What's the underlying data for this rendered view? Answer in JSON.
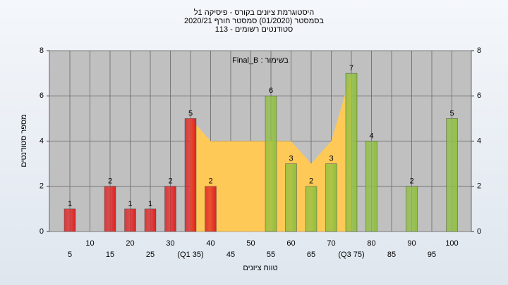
{
  "chart_data": {
    "type": "bar",
    "title": [
      "היסטוגרמת ציונים בקורס - פיסיקה 1ל",
      "בסמסטר  (01/2020)  סמסטר חורף 2020/21",
      "סטודנטים רשומים - 113"
    ],
    "annotation": "בשימור : Final_B",
    "x_label": "טווח ציונים",
    "y_label": "מספר סטודנטים",
    "categories": [
      "5",
      "10",
      "15",
      "20",
      "25",
      "30",
      "(Q1 35)",
      "40",
      "45",
      "50",
      "55",
      "60",
      "65",
      "70",
      "(Q3 75)",
      "80",
      "85",
      "90",
      "95",
      "100"
    ],
    "values": [
      1,
      0,
      2,
      1,
      1,
      2,
      5,
      2,
      0,
      0,
      6,
      3,
      2,
      3,
      7,
      4,
      0,
      2,
      0,
      5
    ],
    "colors": [
      "#e02020",
      "#e02020",
      "#e02020",
      "#e02020",
      "#e02020",
      "#e02020",
      "#e02020",
      "#e02020",
      "#8fc040",
      "#8fc040",
      "#8fc040",
      "#8fc040",
      "#8fc040",
      "#8fc040",
      "#8fc040",
      "#8fc040",
      "#8fc040",
      "#8fc040",
      "#8fc040",
      "#8fc040"
    ],
    "area": {
      "color": "#ffc957",
      "values": [
        null,
        null,
        null,
        null,
        null,
        null,
        5,
        4,
        4,
        4,
        4,
        4,
        3,
        4,
        7,
        null,
        null,
        null,
        null,
        null
      ]
    },
    "ylim": [
      0,
      8
    ],
    "yticks": [
      0,
      2,
      4,
      6,
      8
    ],
    "grid": true
  }
}
